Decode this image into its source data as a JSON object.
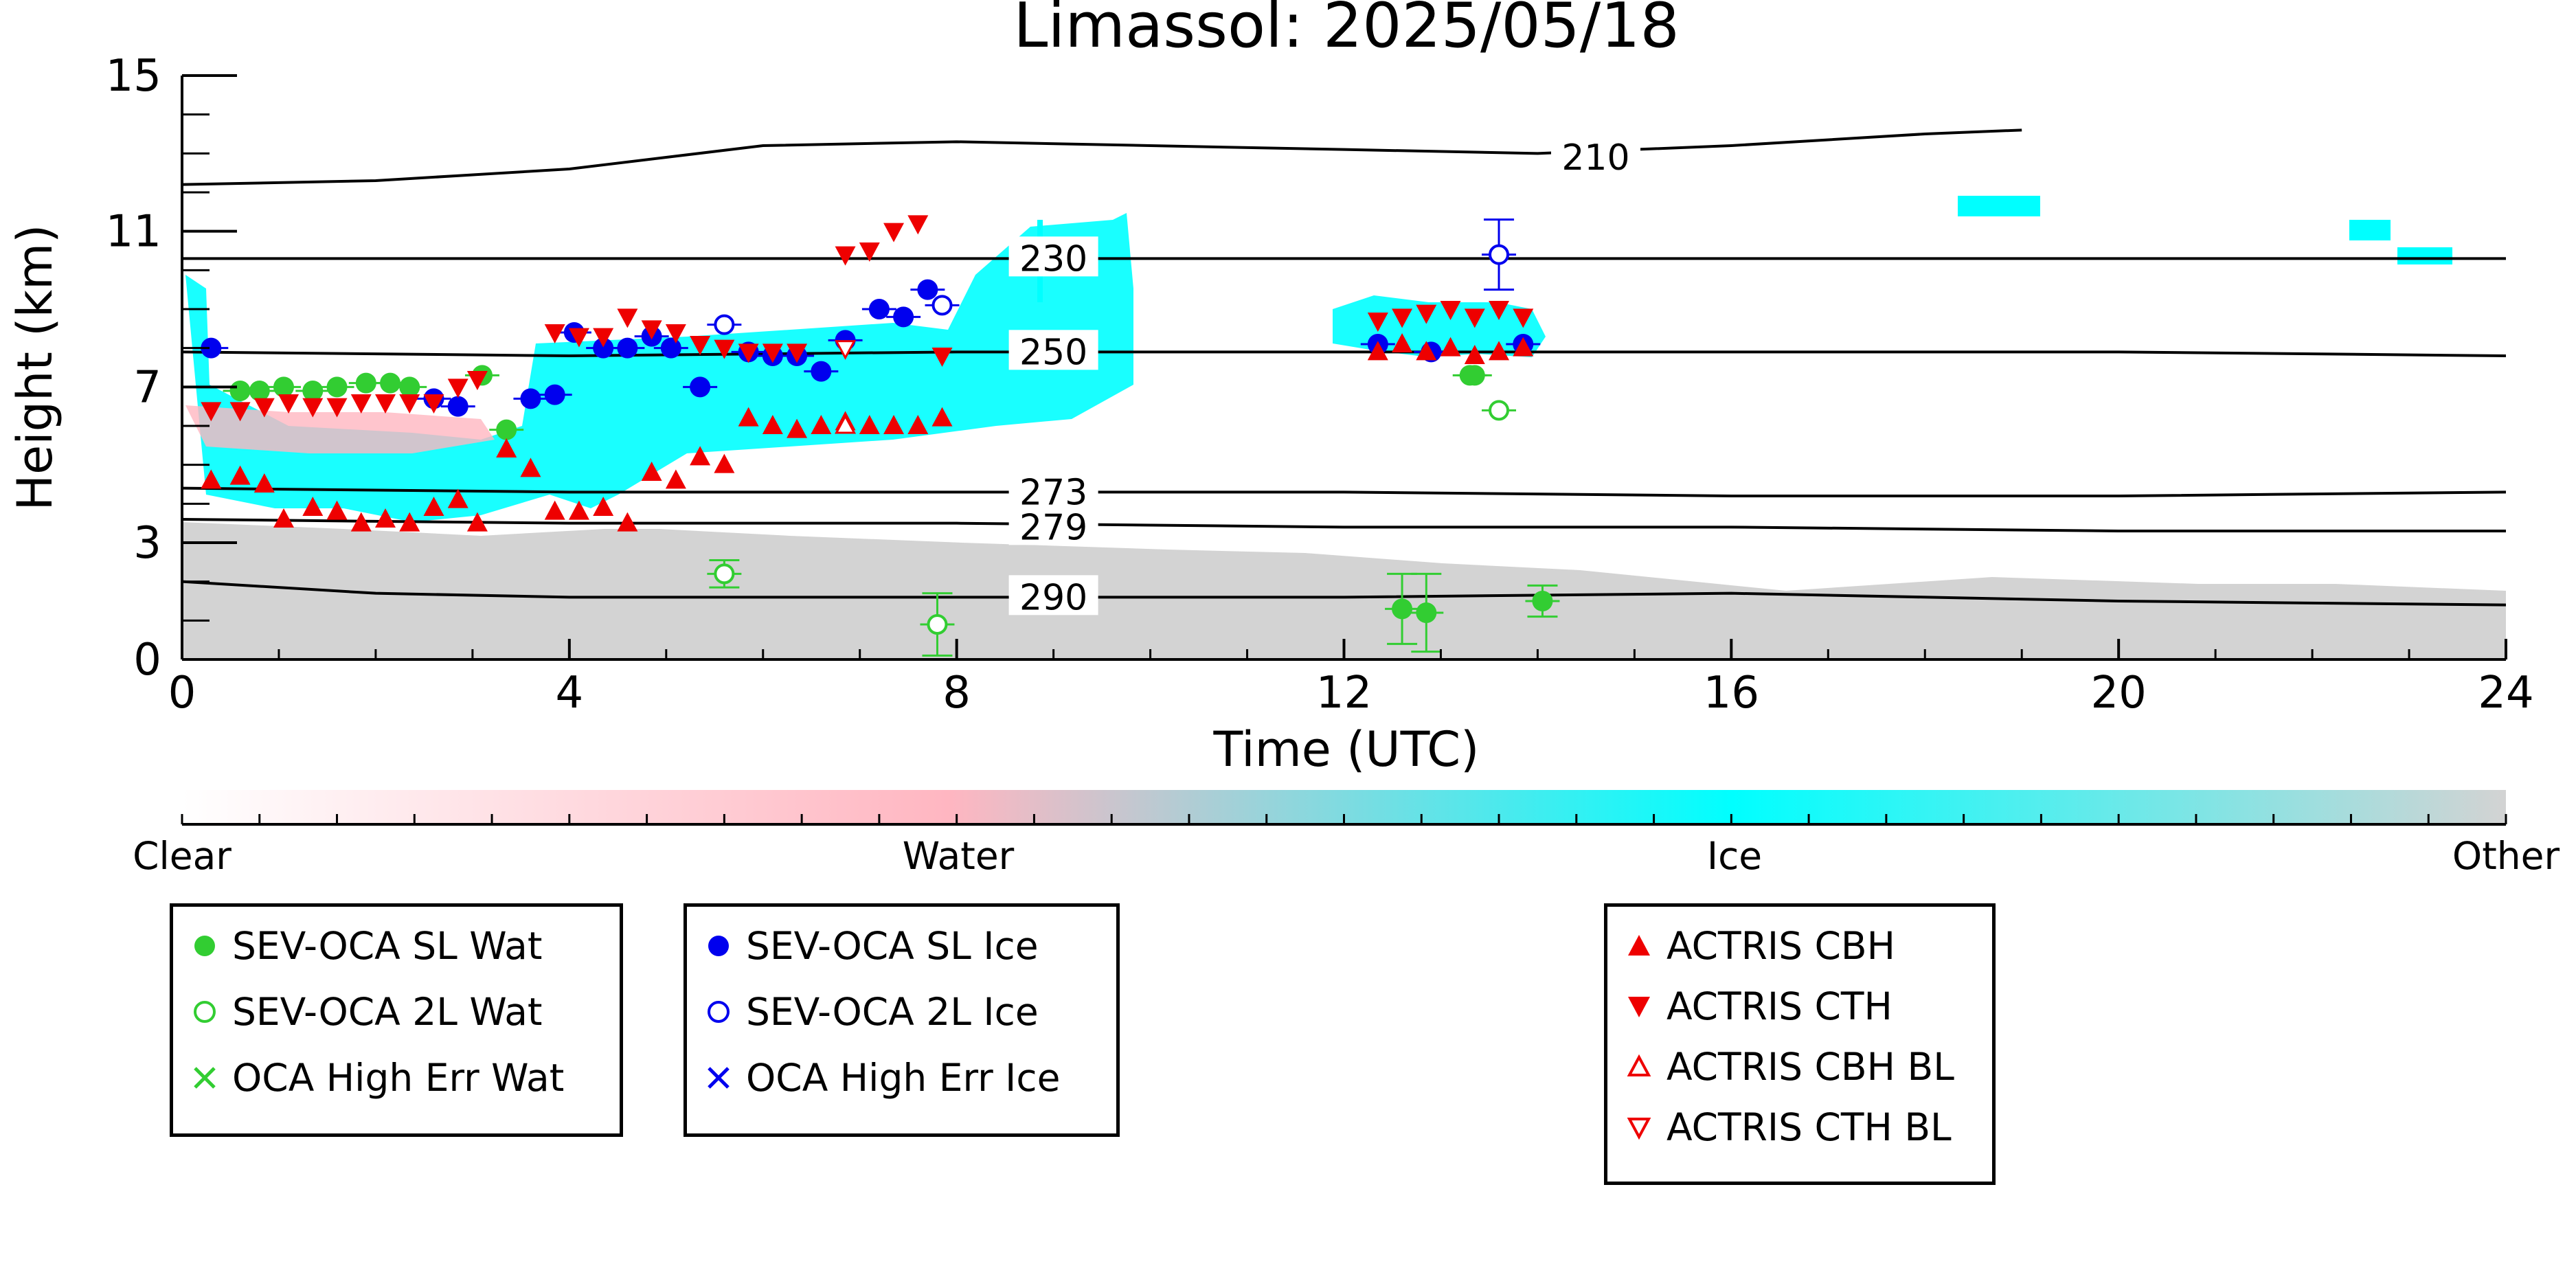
{
  "chart_data": {
    "type": "scatter",
    "title": "Limassol: 2025/05/18",
    "xlabel": "Time (UTC)",
    "ylabel": "Height (km)",
    "xlim": [
      0,
      24
    ],
    "ylim": [
      0,
      15
    ],
    "x_ticks": [
      0,
      4,
      8,
      12,
      16,
      20,
      24
    ],
    "y_ticks": [
      0,
      3,
      7,
      11,
      15
    ],
    "grid": false,
    "colorbar": {
      "labels": [
        "Clear",
        "Water",
        "Ice",
        "Other"
      ],
      "colors": [
        "#ffffff",
        "#ffb6c1",
        "#00ffff",
        "#d3d3d3"
      ]
    },
    "isotherms": [
      {
        "label": "210",
        "x": [
          0,
          2,
          4,
          6,
          8,
          10,
          12,
          14,
          16,
          18,
          19
        ],
        "y": [
          12.2,
          12.3,
          12.6,
          13.2,
          13.3,
          13.2,
          13.1,
          13.0,
          13.2,
          13.5,
          13.6
        ]
      },
      {
        "label": "230",
        "x": [
          0,
          4,
          8,
          12,
          16,
          20,
          24
        ],
        "y": [
          10.3,
          10.3,
          10.3,
          10.3,
          10.3,
          10.3,
          10.3
        ]
      },
      {
        "label": "250",
        "x": [
          0,
          4,
          8,
          12,
          16,
          20,
          24
        ],
        "y": [
          7.9,
          7.8,
          7.9,
          7.9,
          7.9,
          7.9,
          7.8
        ]
      },
      {
        "label": "273",
        "x": [
          0,
          4,
          8,
          12,
          16,
          20,
          24
        ],
        "y": [
          4.4,
          4.3,
          4.3,
          4.3,
          4.2,
          4.2,
          4.3
        ]
      },
      {
        "label": "279",
        "x": [
          0,
          4,
          8,
          12,
          16,
          20,
          24
        ],
        "y": [
          3.6,
          3.5,
          3.5,
          3.4,
          3.4,
          3.3,
          3.3
        ]
      },
      {
        "label": "290",
        "x": [
          0,
          2,
          4,
          8,
          12,
          16,
          20,
          24
        ],
        "y": [
          2.0,
          1.7,
          1.6,
          1.6,
          1.6,
          1.7,
          1.5,
          1.4
        ]
      }
    ],
    "series": [
      {
        "name": "SEV-OCA SL Wat",
        "color": "#32cd32",
        "marker": "filled-circle",
        "x": [
          0.6,
          0.8,
          1.05,
          1.35,
          1.6,
          1.9,
          2.15,
          2.35,
          3.1,
          3.35,
          13.3,
          12.6,
          12.85,
          14.05,
          13.35
        ],
        "y": [
          6.9,
          6.9,
          7.0,
          6.9,
          7.0,
          7.1,
          7.1,
          7.0,
          7.3,
          5.9,
          7.3,
          1.3,
          1.2,
          1.5,
          7.3
        ]
      },
      {
        "name": "SEV-OCA 2L Wat",
        "color": "#32cd32",
        "marker": "open-circle",
        "x": [
          5.6,
          7.8,
          13.6
        ],
        "y": [
          2.2,
          0.9,
          6.4
        ]
      },
      {
        "name": "OCA High Err Wat",
        "color": "#32cd32",
        "marker": "x",
        "x": [],
        "y": []
      },
      {
        "name": "SEV-OCA SL Ice",
        "color": "#0000ee",
        "marker": "filled-circle",
        "x": [
          0.3,
          2.6,
          2.85,
          3.6,
          3.85,
          4.05,
          4.35,
          4.6,
          4.85,
          5.05,
          5.35,
          5.85,
          6.1,
          6.35,
          6.6,
          6.85,
          7.2,
          7.45,
          7.7,
          12.35,
          12.9,
          13.85
        ],
        "y": [
          8.0,
          6.7,
          6.5,
          6.7,
          6.8,
          8.4,
          8.0,
          8.0,
          8.3,
          8.0,
          7.0,
          7.9,
          7.8,
          7.8,
          7.4,
          8.2,
          9.0,
          8.8,
          9.5,
          8.1,
          7.9,
          8.1
        ]
      },
      {
        "name": "SEV-OCA 2L Ice",
        "color": "#0000ee",
        "marker": "open-circle",
        "x": [
          5.6,
          7.85,
          13.6
        ],
        "y": [
          8.6,
          9.1,
          10.4
        ]
      },
      {
        "name": "OCA High Err Ice",
        "color": "#0000ee",
        "marker": "x",
        "x": [],
        "y": []
      },
      {
        "name": "ACTRIS CBH",
        "color": "#ee0000",
        "marker": "triangle-up",
        "x": [
          0.3,
          0.6,
          0.85,
          1.05,
          1.35,
          1.6,
          1.85,
          2.1,
          2.35,
          2.6,
          2.85,
          3.05,
          3.35,
          3.6,
          3.85,
          4.1,
          4.35,
          4.6,
          4.85,
          5.1,
          5.35,
          5.6,
          5.85,
          6.1,
          6.35,
          6.6,
          6.85,
          7.1,
          7.35,
          7.6,
          7.85,
          12.35,
          12.6,
          12.85,
          13.1,
          13.35,
          13.6,
          13.85
        ],
        "y": [
          4.6,
          4.7,
          4.5,
          3.6,
          3.9,
          3.8,
          3.5,
          3.6,
          3.5,
          3.9,
          4.1,
          3.5,
          5.4,
          4.9,
          3.8,
          3.8,
          3.9,
          3.5,
          4.8,
          4.6,
          5.2,
          5.0,
          6.2,
          6.0,
          5.9,
          6.0,
          6.1,
          6.0,
          6.0,
          6.0,
          6.2,
          7.9,
          8.1,
          7.9,
          8.0,
          7.8,
          7.9,
          8.0
        ]
      },
      {
        "name": "ACTRIS CTH",
        "color": "#ee0000",
        "marker": "triangle-down",
        "x": [
          0.3,
          0.6,
          0.85,
          1.1,
          1.35,
          1.6,
          1.85,
          2.1,
          2.35,
          2.6,
          2.85,
          3.05,
          3.85,
          4.1,
          4.35,
          4.6,
          4.85,
          5.1,
          5.35,
          5.6,
          5.85,
          6.1,
          6.35,
          6.85,
          7.1,
          7.35,
          7.6,
          7.85,
          12.35,
          12.6,
          12.85,
          13.1,
          13.35,
          13.6,
          13.85
        ],
        "y": [
          6.4,
          6.4,
          6.5,
          6.6,
          6.5,
          6.5,
          6.6,
          6.6,
          6.6,
          6.6,
          7.0,
          7.2,
          8.4,
          8.3,
          8.3,
          8.8,
          8.5,
          8.4,
          8.1,
          8.0,
          7.9,
          7.9,
          7.9,
          10.4,
          10.5,
          11.0,
          11.2,
          7.8,
          8.7,
          8.8,
          8.9,
          9.0,
          8.8,
          9.0,
          8.8
        ]
      },
      {
        "name": "ACTRIS CBH BL",
        "color": "#ee0000",
        "marker": "open-triangle-up",
        "x": [
          6.85
        ],
        "y": [
          6.0
        ]
      },
      {
        "name": "ACTRIS CTH BL",
        "color": "#ee0000",
        "marker": "open-triangle-down",
        "x": [
          6.85
        ],
        "y": [
          8.0
        ]
      }
    ]
  }
}
